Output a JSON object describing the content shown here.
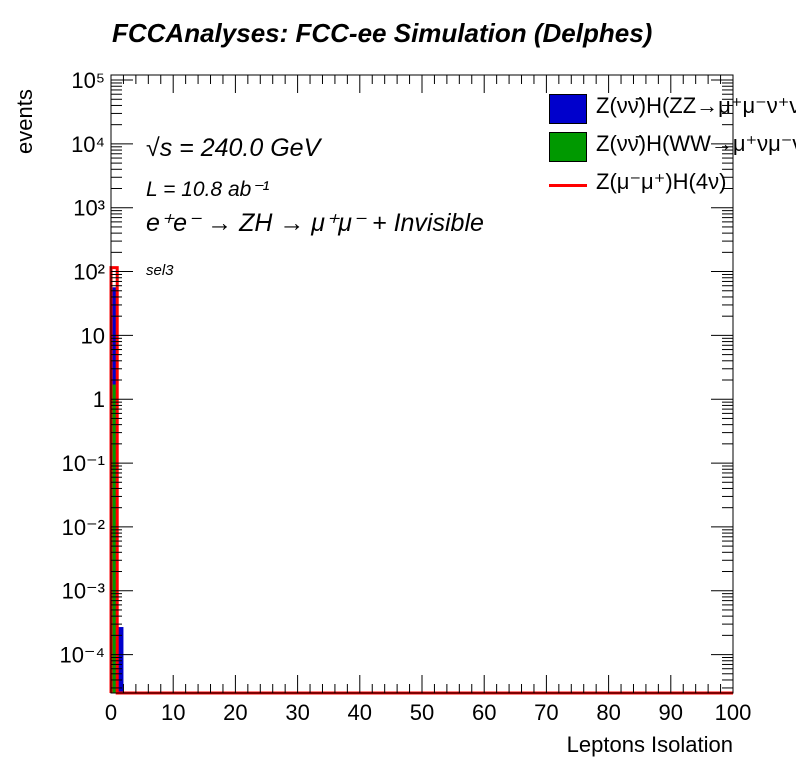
{
  "title": "FCCAnalyses: FCC-ee Simulation (Delphes)",
  "annotations": {
    "energy_prefix": "√",
    "energy": "s = 240.0 GeV",
    "lumi": "L = 10.8 ab⁻¹",
    "process": "e⁺e⁻ → ZH → μ⁺μ⁻ + Invisible",
    "selection": "sel3"
  },
  "colors": {
    "znn_hzz": "#0000cc",
    "znn_hww": "#009900",
    "zmumu_h4nu": "#ff0000"
  },
  "chart_data": {
    "type": "bar",
    "stacked": true,
    "xlabel": "Leptons Isolation",
    "ylabel": "events",
    "xlim": [
      0,
      100
    ],
    "ylim": [
      2.5e-05,
      120000
    ],
    "y_scale": "log",
    "bin_width": 1,
    "x_ticks": [
      "0",
      "10",
      "20",
      "30",
      "40",
      "50",
      "60",
      "70",
      "80",
      "90",
      "100"
    ],
    "y_ticks": [
      "10⁻⁴",
      "10⁻³",
      "10⁻²",
      "10⁻¹",
      "1",
      "10",
      "10²",
      "10³",
      "10⁴",
      "10⁵"
    ],
    "y_tick_values": [
      0.0001,
      0.001,
      0.01,
      0.1,
      1,
      10,
      100,
      1000,
      10000,
      100000
    ],
    "legend_position": "top-right",
    "series": [
      {
        "name": "Z(νν̄)H(ZZ→μ⁺μ⁻ν⁺ν⁻)",
        "style": "fill",
        "color": "#0000cc",
        "bins": [
          {
            "x0": 0,
            "x1": 1,
            "y": 55
          },
          {
            "x0": 1,
            "x1": 2,
            "y": 0.00027
          }
        ]
      },
      {
        "name": "Z(νν̄)H(WW→μ⁺νμ⁻ν)",
        "style": "fill",
        "color": "#009900",
        "bins": [
          {
            "x0": 0,
            "x1": 1,
            "y": 1.7
          }
        ]
      },
      {
        "name": "Z(μ⁻μ⁺)H(4ν)",
        "style": "line",
        "color": "#ff0000",
        "bins": [
          {
            "x0": 0,
            "x1": 1,
            "y": 115
          }
        ]
      }
    ]
  }
}
